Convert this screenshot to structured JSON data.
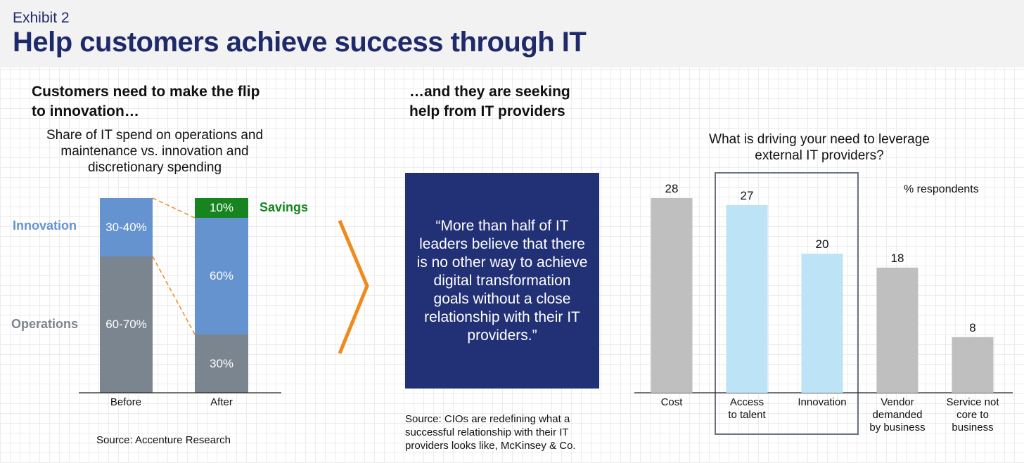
{
  "header": {
    "exhibit": "Exhibit 2",
    "title": "Help customers achieve success through IT"
  },
  "left_panel": {
    "heading_line1": "Customers need to make the flip",
    "heading_line2": "to innovation…",
    "subtitle_line1": "Share of IT spend on operations and",
    "subtitle_line2": "maintenance vs. innovation and",
    "subtitle_line3": "discretionary spending",
    "source": "Source: Accenture Research"
  },
  "middle_panel": {
    "heading_line1": "…and they are seeking",
    "heading_line2": "help from IT providers",
    "quote": "“More than half of IT leaders believe that there is no other way to achieve digital transformation goals without a close relationship with their IT providers.”",
    "source_line1": "Source: CIOs are redefining what a",
    "source_line2": "successful relationship with their IT",
    "source_line3": "providers looks like, McKinsey & Co."
  },
  "right_panel": {
    "question_line1": "What is driving your need to leverage",
    "question_line2": "external IT providers?",
    "unit_note": "% respondents"
  },
  "colors": {
    "navy": "#1f2a6b",
    "operations": "#7b858f",
    "innovation": "#6593cf",
    "savings": "#17851f",
    "arrow": "#f08a1c",
    "bar_grey": "#bfbfbf",
    "bar_highlight": "#bde3f7"
  },
  "chart_data": [
    {
      "type": "bar",
      "stacked": true,
      "categories": [
        "Before",
        "After"
      ],
      "series": [
        {
          "name": "Operations",
          "values": [
            65,
            30
          ],
          "labels": [
            "60-70%",
            "30%"
          ]
        },
        {
          "name": "Innovation",
          "values": [
            35,
            60
          ],
          "labels": [
            "30-40%",
            "60%"
          ]
        },
        {
          "name": "Savings",
          "values": [
            0,
            10
          ],
          "labels": [
            "",
            "10%"
          ]
        }
      ],
      "ylim": [
        0,
        100
      ]
    },
    {
      "type": "bar",
      "categories": [
        "Cost",
        "Access to talent",
        "Innovation",
        "Vendor demanded by business",
        "Service not core to business"
      ],
      "category_lines": [
        [
          "Cost"
        ],
        [
          "Access",
          "to talent"
        ],
        [
          "Innovation"
        ],
        [
          "Vendor",
          "demanded",
          "by business"
        ],
        [
          "Service not",
          "core to",
          "business"
        ]
      ],
      "values": [
        28,
        27,
        20,
        18,
        8
      ],
      "highlighted": [
        false,
        true,
        true,
        false,
        false
      ],
      "ylabel": "% respondents",
      "ylim": [
        0,
        28
      ]
    }
  ]
}
